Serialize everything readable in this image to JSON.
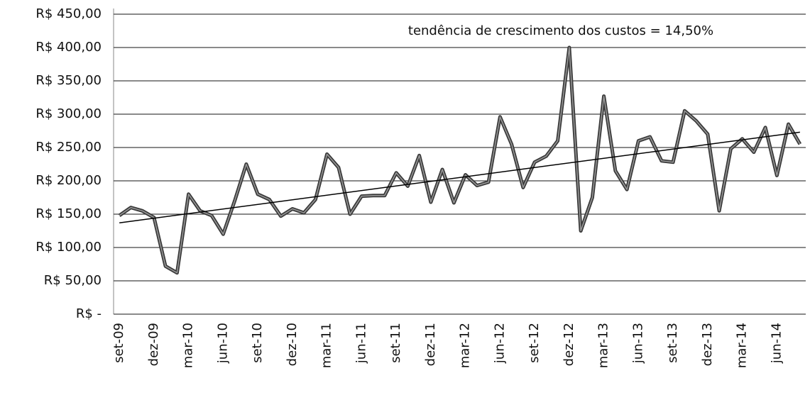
{
  "chart_data": {
    "type": "line",
    "annotation": "tendência de crescimento dos custos = 14,50%",
    "categories": [
      "set-09",
      null,
      null,
      "dez-09",
      null,
      null,
      "mar-10",
      null,
      null,
      "jun-10",
      null,
      null,
      "set-10",
      null,
      null,
      "dez-10",
      null,
      null,
      "mar-11",
      null,
      null,
      "jun-11",
      null,
      null,
      "set-11",
      null,
      null,
      "dez-11",
      null,
      null,
      "mar-12",
      null,
      null,
      "jun-12",
      null,
      null,
      "set-12",
      null,
      null,
      "dez-12",
      null,
      null,
      "mar-13",
      null,
      null,
      "jun-13",
      null,
      null,
      "set-13",
      null,
      null,
      "dez-13",
      null,
      null,
      "mar-14",
      null,
      null,
      "jun-14",
      null,
      null
    ],
    "series": [
      {
        "color": "#3a3a3a",
        "values": [
          148,
          160,
          155,
          145,
          72,
          62,
          180,
          155,
          148,
          120,
          170,
          225,
          180,
          172,
          147,
          158,
          152,
          172,
          240,
          220,
          150,
          177,
          178,
          178,
          212,
          192,
          238,
          168,
          217,
          167,
          209,
          193,
          198,
          296,
          255,
          190,
          228,
          237,
          260,
          400,
          125,
          175,
          327,
          215,
          187,
          260,
          266,
          230,
          228,
          305,
          290,
          270,
          155,
          248,
          263,
          243,
          280,
          208,
          285,
          255
        ]
      }
    ],
    "trendline": {
      "color": "#000000",
      "start": 137,
      "end": 273
    },
    "ylim": [
      0,
      450
    ],
    "yticks": [
      {
        "value": 0,
        "label": "R$ -"
      },
      {
        "value": 50,
        "label": "R$ 50,00"
      },
      {
        "value": 100,
        "label": "R$ 100,00"
      },
      {
        "value": 150,
        "label": "R$ 150,00"
      },
      {
        "value": 200,
        "label": "R$ 200,00"
      },
      {
        "value": 250,
        "label": "R$ 250,00"
      },
      {
        "value": 300,
        "label": "R$ 300,00"
      },
      {
        "value": 350,
        "label": "R$ 350,00"
      },
      {
        "value": 400,
        "label": "R$ 400,00"
      },
      {
        "value": 450,
        "label": "R$ 450,00"
      }
    ],
    "grid": true
  }
}
